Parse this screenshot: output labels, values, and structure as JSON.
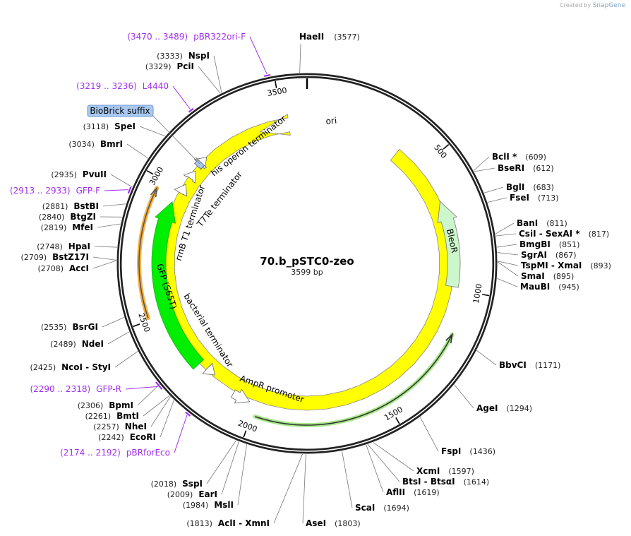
{
  "watermark": {
    "created_by": "Created by",
    "brand": "SnapGene"
  },
  "plasmid": {
    "name": "70.b_pSTC0-zeo",
    "length": "3599 bp"
  },
  "ticks": [
    "500",
    "1000",
    "1500",
    "2000",
    "2500",
    "3000",
    "3500"
  ],
  "sites": [
    {
      "name": "HaeII",
      "pos": "(3577)"
    },
    {
      "name": "NspI",
      "pos": "(3333)"
    },
    {
      "name": "PciI",
      "pos": "(3329)"
    },
    {
      "name": "SpeI",
      "pos": "(3118)"
    },
    {
      "name": "BmrI",
      "pos": "(3034)"
    },
    {
      "name": "PvuII",
      "pos": "(2935)"
    },
    {
      "name": "BstBI",
      "pos": "(2881)"
    },
    {
      "name": "BtgZI",
      "pos": "(2840)"
    },
    {
      "name": "MfeI",
      "pos": "(2819)"
    },
    {
      "name": "HpaI",
      "pos": "(2748)"
    },
    {
      "name": "BstZ17I",
      "pos": "(2709)"
    },
    {
      "name": "AccI",
      "pos": "(2708)"
    },
    {
      "name": "BsrGI",
      "pos": "(2535)"
    },
    {
      "name": "NdeI",
      "pos": "(2489)"
    },
    {
      "name": "NcoI - StyI",
      "pos": "(2425)"
    },
    {
      "name": "BpmI",
      "pos": "(2306)"
    },
    {
      "name": "BmtI",
      "pos": "(2261)"
    },
    {
      "name": "NheI",
      "pos": "(2257)"
    },
    {
      "name": "EcoRI",
      "pos": "(2242)"
    },
    {
      "name": "SspI",
      "pos": "(2018)"
    },
    {
      "name": "EarI",
      "pos": "(2009)"
    },
    {
      "name": "MslI",
      "pos": "(1984)"
    },
    {
      "name": "AclI - XmnI",
      "pos": "(1813)"
    },
    {
      "name": "AseI",
      "pos": "(1803)"
    },
    {
      "name": "ScaI",
      "pos": "(1694)"
    },
    {
      "name": "AflII",
      "pos": "(1619)"
    },
    {
      "name": "BtsI - BtsαI",
      "pos": "(1614)"
    },
    {
      "name": "XcmI",
      "pos": "(1597)"
    },
    {
      "name": "FspI",
      "pos": "(1436)"
    },
    {
      "name": "AgeI",
      "pos": "(1294)"
    },
    {
      "name": "BbvCI",
      "pos": "(1171)"
    },
    {
      "name": "BclI *",
      "pos": "(609)"
    },
    {
      "name": "BseRI",
      "pos": "(612)"
    },
    {
      "name": "BglI",
      "pos": "(683)"
    },
    {
      "name": "FseI",
      "pos": "(713)"
    },
    {
      "name": "BanI",
      "pos": "(811)"
    },
    {
      "name": "CsiI - SexAI *",
      "pos": "(817)"
    },
    {
      "name": "BmgBI",
      "pos": "(851)"
    },
    {
      "name": "SgrAI",
      "pos": "(867)"
    },
    {
      "name": "TspMI - XmaI",
      "pos": "(893)"
    },
    {
      "name": "SmaI",
      "pos": "(895)"
    },
    {
      "name": "MauBI",
      "pos": "(945)"
    }
  ],
  "primers": [
    {
      "name": "pBR322ori-F",
      "range": "(3470 .. 3489)"
    },
    {
      "name": "L4440",
      "range": "(3219 .. 3236)"
    },
    {
      "name": "GFP-F",
      "range": "(2913 .. 2933)"
    },
    {
      "name": "GFP-R",
      "range": "(2290 .. 2318)"
    },
    {
      "name": "pBRforEco",
      "range": "(2174 .. 2192)"
    }
  ],
  "features": {
    "ori": "ori",
    "bleor": "BleoR",
    "gfp": "GFP (S65T)",
    "his": "his operon terminator",
    "t7te": "T7Te terminator",
    "rrnb": "rrnB T1 terminator",
    "bact": "bacterial terminator",
    "ampr_promoter": "AmpR promoter",
    "biobrick": "BioBrick suffix"
  },
  "colors": {
    "ori": "#ffff00",
    "bleor": "#ccf7cc",
    "gfp": "#00ee00",
    "primer": "#a030f0",
    "biobrick": "#a8c8f0",
    "orange": "#f5b040",
    "ampr": "#a8e88a"
  }
}
